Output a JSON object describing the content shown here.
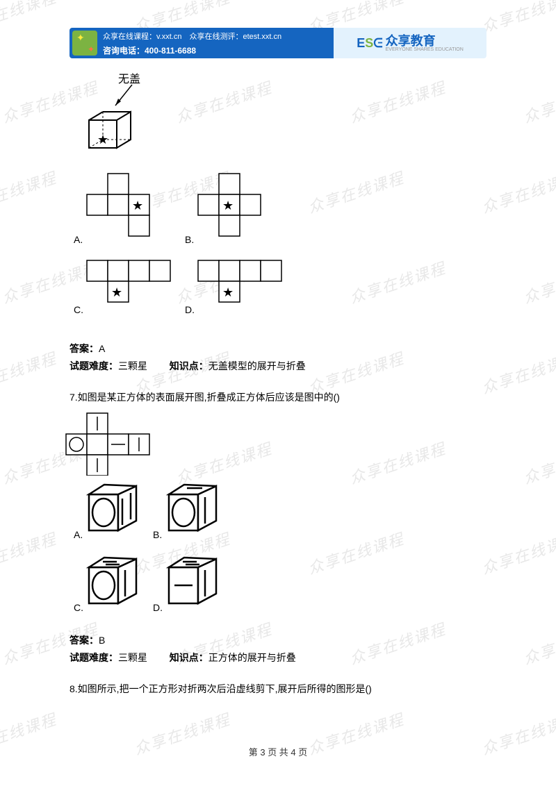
{
  "header": {
    "line1": "众享在线课程：v.xxt.cn　众享在线测评：etest.xxt.cn",
    "line2": "咨询电话：400-811-6688",
    "brand_cn": "众享教育",
    "brand_en": "EVERYONE SHARES EDUCATION"
  },
  "watermark_text": "众享在线课程",
  "q6": {
    "wugai": "无盖",
    "opt_a": "A.",
    "opt_b": "B.",
    "opt_c": "C.",
    "opt_d": "D.",
    "answer_label": "答案：",
    "answer_val": "A",
    "diff_label": "试题难度：",
    "diff_val": "三颗星",
    "kp_label": "知识点：",
    "kp_val": "无盖模型的展开与折叠"
  },
  "q7": {
    "text": "7.如图是某正方体的表面展开图,折叠成正方体后应该是图中的()",
    "opt_a": "A.",
    "opt_b": "B.",
    "opt_c": "C.",
    "opt_d": "D.",
    "answer_label": "答案：",
    "answer_val": "B",
    "diff_label": "试题难度：",
    "diff_val": "三颗星",
    "kp_label": "知识点：",
    "kp_val": "正方体的展开与折叠"
  },
  "q8": {
    "text": "8.如图所示,把一个正方形对折两次后沿虚线剪下,展开后所得的图形是()"
  },
  "footer": {
    "text": "第 3 页 共 4 页"
  },
  "colors": {
    "header_blue": "#1565c0",
    "header_green": "#7cb342",
    "watermark": "#e8e8e8",
    "text": "#000000"
  }
}
